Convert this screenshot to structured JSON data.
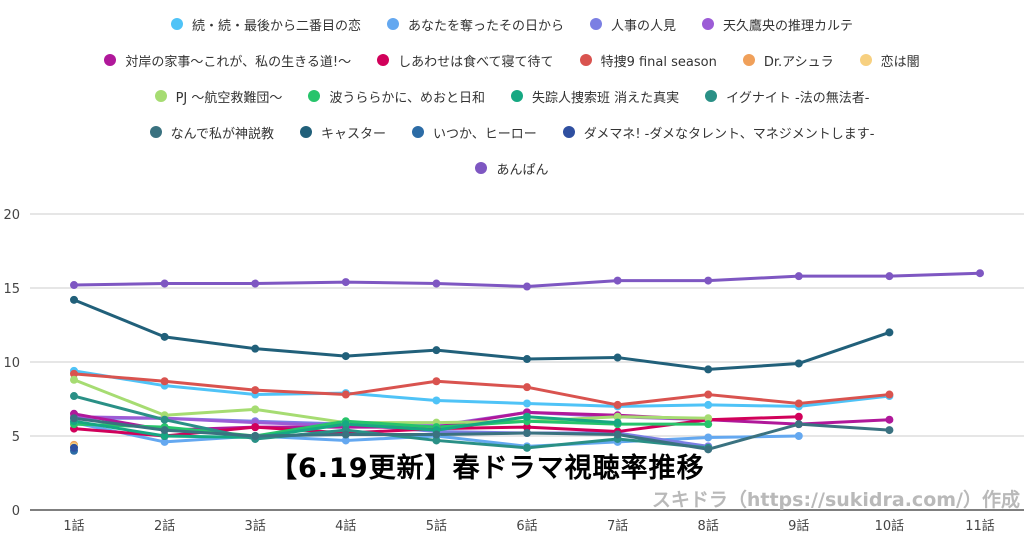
{
  "overlay": {
    "title": "【6.19更新】春ドラマ視聴率推移",
    "watermark": "スキドラ（https://sukidra.com/）作成"
  },
  "chart_data": {
    "type": "line",
    "title": "",
    "xlabel": "",
    "ylabel": "",
    "ylim": [
      0,
      20
    ],
    "yticks": [
      0,
      5,
      10,
      15,
      20
    ],
    "grid": true,
    "legend_position": "top",
    "categories": [
      "1話",
      "2話",
      "3話",
      "4話",
      "5話",
      "6話",
      "7話",
      "8話",
      "9話",
      "10話",
      "11話"
    ],
    "series": [
      {
        "name": "続・続・最後から二番目の恋",
        "color": "#4fc3f7",
        "values": [
          9.4,
          8.4,
          7.8,
          7.9,
          7.4,
          7.2,
          7.0,
          7.1,
          7.0,
          7.7,
          null
        ]
      },
      {
        "name": "あなたを奪ったその日から",
        "color": "#64a8f0",
        "values": [
          5.9,
          4.6,
          5.0,
          4.7,
          5.0,
          4.3,
          4.6,
          4.9,
          5.0,
          null,
          null
        ]
      },
      {
        "name": "人事の人見",
        "color": "#7b7fe3",
        "values": [
          6.2,
          6.2,
          6.0,
          5.8,
          5.3,
          5.2,
          5.2,
          4.3,
          null,
          null,
          null
        ]
      },
      {
        "name": "天久鷹央の推理カルテ",
        "color": "#9c5cd6",
        "values": [
          6.3,
          6.2,
          5.9,
          5.7,
          5.7,
          6.6,
          6.3,
          6.1,
          null,
          null,
          null
        ]
      },
      {
        "name": "対岸の家事～これが、私の生きる道!～",
        "color": "#b0189a",
        "values": [
          6.5,
          5.4,
          5.6,
          5.6,
          5.6,
          6.6,
          6.4,
          6.1,
          5.8,
          6.1,
          null
        ]
      },
      {
        "name": "しあわせは食べて寝て待て",
        "color": "#d1005a",
        "values": [
          5.5,
          5.0,
          5.6,
          5.2,
          5.5,
          5.6,
          5.3,
          6.1,
          6.3,
          null,
          null
        ]
      },
      {
        "name": "特捜9 final season",
        "color": "#d9534f",
        "values": [
          9.2,
          8.7,
          8.1,
          7.8,
          8.7,
          8.3,
          7.1,
          7.8,
          7.2,
          7.8,
          null
        ]
      },
      {
        "name": "Dr.アシュラ",
        "color": "#f0a05a",
        "values": [
          4.4,
          null,
          null,
          null,
          null,
          null,
          null,
          null,
          null,
          null,
          null
        ]
      },
      {
        "name": "恋は闇",
        "color": "#f7d080",
        "values": [
          4.3,
          null,
          null,
          null,
          null,
          null,
          null,
          null,
          null,
          null,
          null
        ]
      },
      {
        "name": "PJ ～航空救難団～",
        "color": "#a6dc72",
        "values": [
          8.8,
          6.4,
          6.8,
          5.9,
          5.9,
          6.0,
          6.3,
          6.2,
          null,
          null,
          null
        ]
      },
      {
        "name": "波うららかに、めおと日和",
        "color": "#27c46b",
        "values": [
          5.8,
          5.6,
          5.0,
          6.0,
          5.6,
          6.0,
          5.8,
          5.8,
          null,
          null,
          null
        ]
      },
      {
        "name": "失踪人捜索班 消えた真実",
        "color": "#16a882",
        "values": [
          6.0,
          5.0,
          4.9,
          5.8,
          5.4,
          6.3,
          5.9,
          null,
          null,
          null,
          null
        ]
      },
      {
        "name": "イグナイト -法の無法者-",
        "color": "#2a9086",
        "values": [
          7.7,
          6.1,
          4.8,
          5.4,
          4.7,
          4.2,
          4.8,
          4.2,
          null,
          null,
          null
        ]
      },
      {
        "name": "なんで私が神説教",
        "color": "#3a7280",
        "values": [
          6.2,
          5.4,
          5.0,
          5.1,
          5.1,
          5.2,
          5.1,
          4.1,
          5.8,
          5.4,
          null
        ]
      },
      {
        "name": "キャスター",
        "color": "#21607a",
        "values": [
          14.2,
          11.7,
          10.9,
          10.4,
          10.8,
          10.2,
          10.3,
          9.5,
          9.9,
          12.0,
          null
        ]
      },
      {
        "name": "いつか、ヒーロー",
        "color": "#2c6ca6",
        "values": [
          4.0,
          null,
          null,
          null,
          null,
          null,
          null,
          null,
          null,
          null,
          null
        ]
      },
      {
        "name": "ダメマネ! -ダメなタレント、マネジメントします-",
        "color": "#2f4fa0",
        "values": [
          4.2,
          null,
          null,
          null,
          null,
          null,
          null,
          null,
          null,
          null,
          null
        ]
      },
      {
        "name": "あんぱん",
        "color": "#7e57c2",
        "values": [
          15.2,
          15.3,
          15.3,
          15.4,
          15.3,
          15.1,
          15.5,
          15.5,
          15.8,
          15.8,
          16.0
        ]
      }
    ]
  }
}
